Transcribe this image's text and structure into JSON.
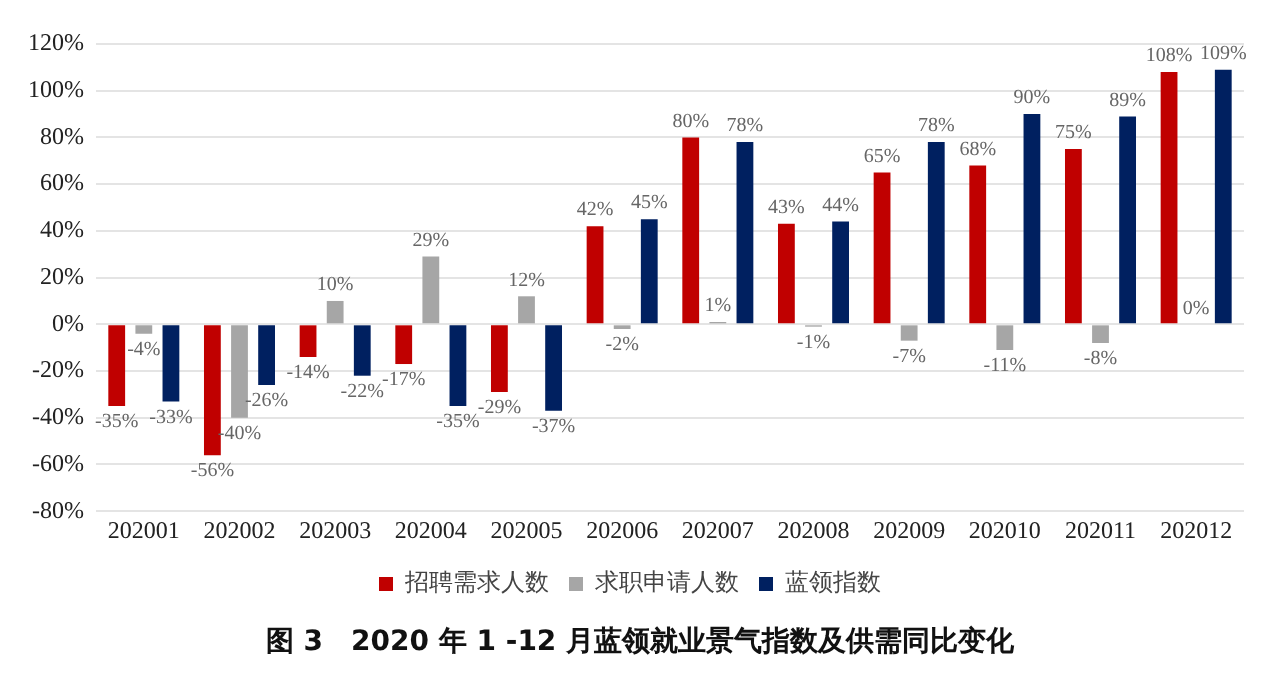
{
  "chart_data": {
    "type": "bar",
    "title": "图 3　2020 年 1 -12 月蓝领就业景气指数及供需同比变化",
    "categories": [
      "202001",
      "202002",
      "202003",
      "202004",
      "202005",
      "202006",
      "202007",
      "202008",
      "202009",
      "202010",
      "202011",
      "202012"
    ],
    "series": [
      {
        "name": "招聘需求人数",
        "color": "#c00000",
        "values": [
          -35,
          -56,
          -14,
          -17,
          -29,
          42,
          80,
          43,
          65,
          68,
          75,
          108
        ],
        "value_labels": [
          "-35%",
          "-56%",
          "-14%",
          "-17%",
          "-29%",
          "42%",
          "80%",
          "43%",
          "65%",
          "68%",
          "75%",
          "108%"
        ]
      },
      {
        "name": "求职申请人数",
        "color": "#a6a6a6",
        "values": [
          -4,
          -40,
          10,
          29,
          12,
          -2,
          1,
          -1,
          -7,
          -11,
          -8,
          0
        ],
        "value_labels": [
          "-4%",
          "-40%",
          "10%",
          "29%",
          "12%",
          "-2%",
          "1%",
          "-1%",
          "-7%",
          "-11%",
          "-8%",
          "0%"
        ]
      },
      {
        "name": "蓝领指数",
        "color": "#002060",
        "values": [
          -33,
          -26,
          -22,
          -35,
          -37,
          45,
          78,
          44,
          78,
          90,
          89,
          109
        ],
        "value_labels": [
          "-33%",
          "-26%",
          "-22%",
          "-35%",
          "-37%",
          "45%",
          "78%",
          "44%",
          "78%",
          "90%",
          "89%",
          "109%"
        ]
      }
    ],
    "ylim": [
      -80,
      120
    ],
    "yticks": [
      {
        "value": -80,
        "label": "-80%"
      },
      {
        "value": -60,
        "label": "-60%"
      },
      {
        "value": -40,
        "label": "-40%"
      },
      {
        "value": -20,
        "label": "-20%"
      },
      {
        "value": 0,
        "label": "0%"
      },
      {
        "value": 20,
        "label": "20%"
      },
      {
        "value": 40,
        "label": "40%"
      },
      {
        "value": 60,
        "label": "60%"
      },
      {
        "value": 80,
        "label": "80%"
      },
      {
        "value": 100,
        "label": "100%"
      },
      {
        "value": 120,
        "label": "120%"
      }
    ],
    "grid": "y",
    "legend": "bottom"
  }
}
